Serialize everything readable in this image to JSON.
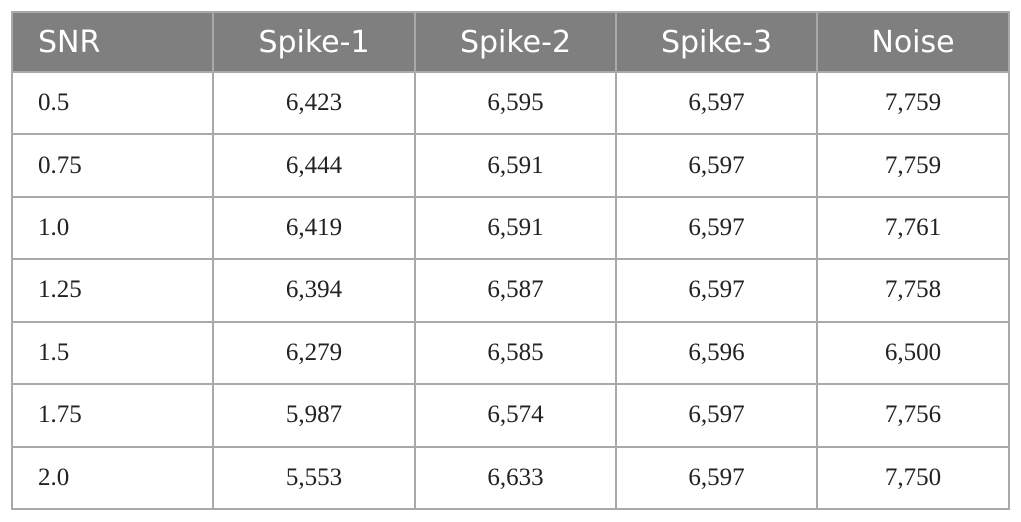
{
  "table": {
    "header": [
      "SNR",
      "Spike-1",
      "Spike-2",
      "Spike-3",
      "Noise"
    ],
    "rows": [
      [
        "0.5",
        "6,423",
        "6,595",
        "6,597",
        "7,759"
      ],
      [
        "0.75",
        "6,444",
        "6,591",
        "6,597",
        "7,759"
      ],
      [
        "1.0",
        "6,419",
        "6,591",
        "6,597",
        "7,761"
      ],
      [
        "1.25",
        "6,394",
        "6,587",
        "6,597",
        "7,758"
      ],
      [
        "1.5",
        "6,279",
        "6,585",
        "6,596",
        "6,500"
      ],
      [
        "1.75",
        "5,987",
        "6,574",
        "6,597",
        "7,756"
      ],
      [
        "2.0",
        "5,553",
        "6,633",
        "6,597",
        "7,750"
      ]
    ]
  }
}
